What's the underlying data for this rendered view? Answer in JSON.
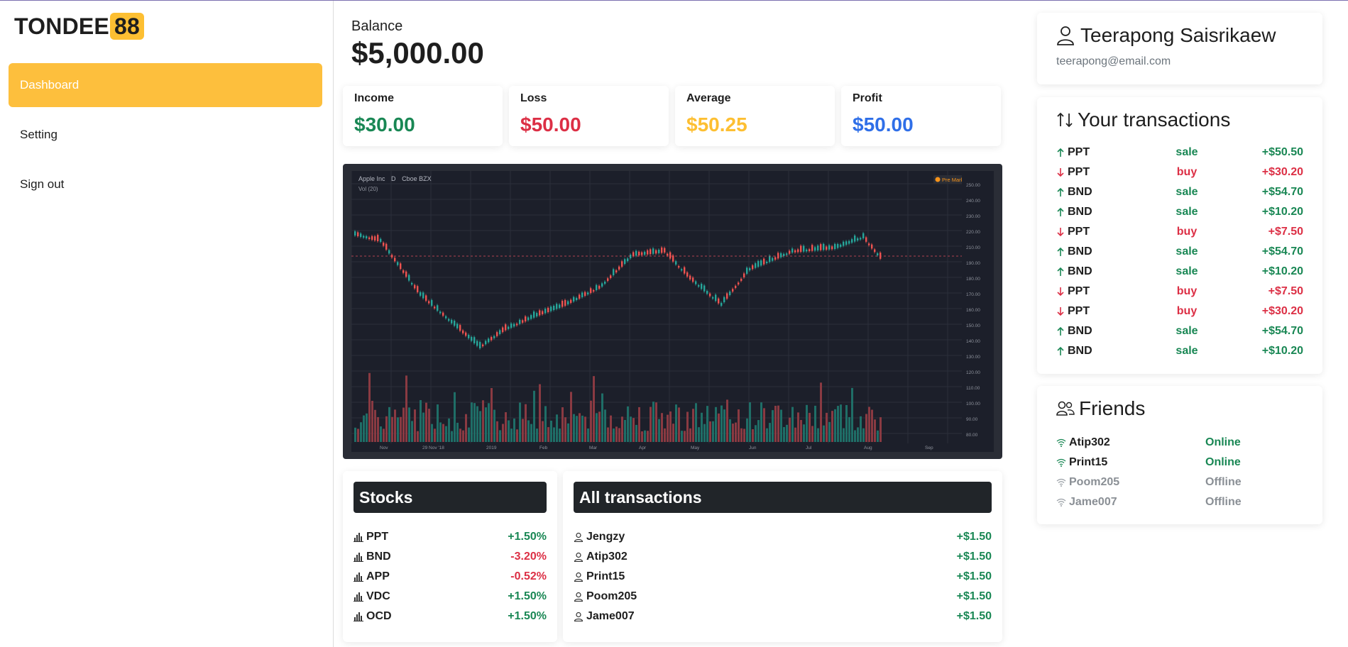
{
  "brand": {
    "name": "TONDEE",
    "badge": "88"
  },
  "sidebar": {
    "items": [
      {
        "label": "Dashboard",
        "active": true
      },
      {
        "label": "Setting",
        "active": false
      },
      {
        "label": "Sign out",
        "active": false
      }
    ]
  },
  "balance": {
    "label": "Balance",
    "value": "$5,000.00"
  },
  "stats": [
    {
      "label": "Income",
      "value": "$30.00",
      "color": "#198754"
    },
    {
      "label": "Loss",
      "value": "$50.00",
      "color": "#dc2f45"
    },
    {
      "label": "Average",
      "value": "$50.25",
      "color": "#fdbf32"
    },
    {
      "label": "Profit",
      "value": "$50.00",
      "color": "#2f6fe8"
    }
  ],
  "chart": {
    "symbol": "Apple Inc",
    "interval": "D",
    "exchange": "Cboe BZX",
    "volume_label": "Vol (20)",
    "x_ticks": [
      "Nov",
      "29 Nov '18",
      "2019",
      "Feb",
      "Mar",
      "Apr",
      "May",
      "Jun",
      "Jul",
      "Aug",
      "Sep"
    ],
    "y_ticks": [
      "250.00",
      "240.00",
      "230.00",
      "220.00",
      "210.00",
      "190.00",
      "180.00",
      "170.00",
      "160.00",
      "150.00",
      "140.00",
      "130.00",
      "120.00",
      "110.00",
      "100.00",
      "90.00",
      "80.00"
    ],
    "market_badge": "Pre Market"
  },
  "stocks": {
    "title": "Stocks",
    "items": [
      {
        "symbol": "PPT",
        "change": "+1.50%",
        "positive": true
      },
      {
        "symbol": "BND",
        "change": "-3.20%",
        "positive": false
      },
      {
        "symbol": "APP",
        "change": "-0.52%",
        "positive": false
      },
      {
        "symbol": "VDC",
        "change": "+1.50%",
        "positive": true
      },
      {
        "symbol": "OCD",
        "change": "+1.50%",
        "positive": true
      }
    ]
  },
  "all_transactions": {
    "title": "All transactions",
    "items": [
      {
        "user": "Jengzy",
        "amount": "+$1.50"
      },
      {
        "user": "Atip302",
        "amount": "+$1.50"
      },
      {
        "user": "Print15",
        "amount": "+$1.50"
      },
      {
        "user": "Poom205",
        "amount": "+$1.50"
      },
      {
        "user": "Jame007",
        "amount": "+$1.50"
      }
    ]
  },
  "profile": {
    "name": "Teerapong Saisrikaew",
    "email": "teerapong@email.com"
  },
  "your_transactions": {
    "title": "Your transactions",
    "items": [
      {
        "symbol": "PPT",
        "type": "sale",
        "amount": "+$50.50"
      },
      {
        "symbol": "PPT",
        "type": "buy",
        "amount": "+$30.20"
      },
      {
        "symbol": "BND",
        "type": "sale",
        "amount": "+$54.70"
      },
      {
        "symbol": "BND",
        "type": "sale",
        "amount": "+$10.20"
      },
      {
        "symbol": "PPT",
        "type": "buy",
        "amount": "+$7.50"
      },
      {
        "symbol": "BND",
        "type": "sale",
        "amount": "+$54.70"
      },
      {
        "symbol": "BND",
        "type": "sale",
        "amount": "+$10.20"
      },
      {
        "symbol": "PPT",
        "type": "buy",
        "amount": "+$7.50"
      },
      {
        "symbol": "PPT",
        "type": "buy",
        "amount": "+$30.20"
      },
      {
        "symbol": "BND",
        "type": "sale",
        "amount": "+$54.70"
      },
      {
        "symbol": "BND",
        "type": "sale",
        "amount": "+$10.20"
      }
    ]
  },
  "friends": {
    "title": "Friends",
    "items": [
      {
        "name": "Atip302",
        "status": "Online"
      },
      {
        "name": "Print15",
        "status": "Online"
      },
      {
        "name": "Poom205",
        "status": "Offline"
      },
      {
        "name": "Jame007",
        "status": "Offline"
      }
    ]
  }
}
